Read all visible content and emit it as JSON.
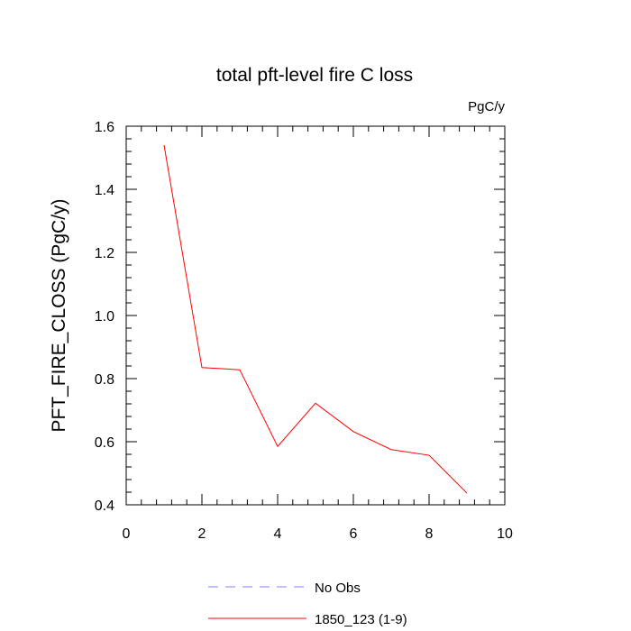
{
  "chart_data": {
    "type": "line",
    "title": "total pft-level fire C loss",
    "units_label": "PgC/y",
    "ylabel": "PFT_FIRE_CLOSS  (PgC/y)",
    "xlabel": "",
    "xlim": [
      0,
      10
    ],
    "ylim": [
      0.4,
      1.6
    ],
    "x_ticks": [
      0,
      2,
      4,
      6,
      8,
      10
    ],
    "x_tick_labels": [
      "0",
      "2",
      "4",
      "6",
      "8",
      "10"
    ],
    "y_ticks": [
      0.4,
      0.6,
      0.8,
      1.0,
      1.2,
      1.4,
      1.6
    ],
    "y_tick_labels": [
      "0.4",
      "0.6",
      "0.8",
      "1.0",
      "1.2",
      "1.4",
      "1.6"
    ],
    "grid": false,
    "legend_position": "bottom",
    "series": [
      {
        "name": "1850_123 (1-9)",
        "color": "#ff0000",
        "style": "solid",
        "x": [
          1,
          2,
          3,
          4,
          5,
          6,
          7,
          8,
          9
        ],
        "y": [
          1.54,
          0.835,
          0.828,
          0.585,
          0.722,
          0.632,
          0.575,
          0.557,
          0.437
        ]
      }
    ],
    "legend": [
      {
        "label": "No Obs",
        "color": "#8080ff",
        "style": "dashed"
      },
      {
        "label": "1850_123 (1-9)",
        "color": "#ff0000",
        "style": "solid"
      }
    ]
  }
}
